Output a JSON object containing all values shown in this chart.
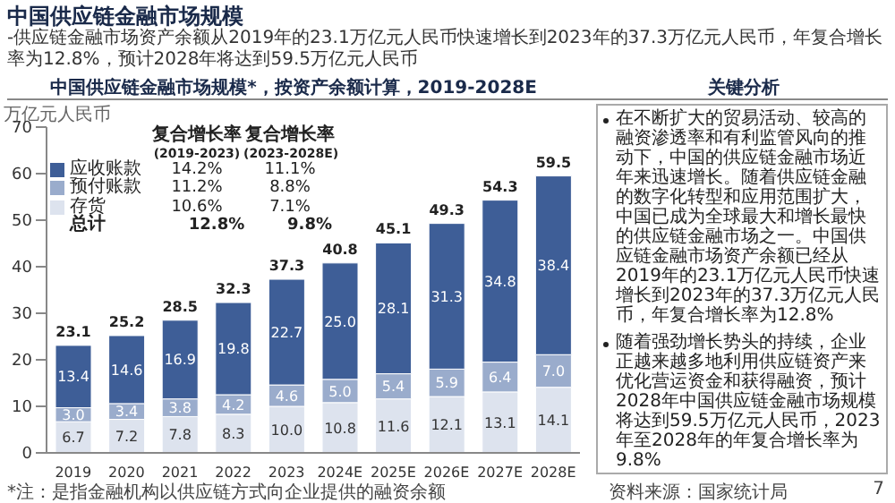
{
  "chart_data": {
    "type": "bar",
    "title": "中国供应链金融市场规模",
    "subtitle": "-供应链金融市场资产余额从2019年的23.1万亿元人民币快速增长到2023年的37.3万亿元人民币，年复合增长率为12.8%，预计2028年将达到59.5万亿元人民币",
    "ylabel": "万亿元人民币",
    "categories": [
      "2019",
      "2020",
      "2021",
      "2022",
      "2023",
      "2024E",
      "2025E",
      "2026E",
      "2027E",
      "2028E"
    ],
    "series": [
      {
        "name": "存货",
        "color": "#dde3ee",
        "values": [
          6.7,
          7.2,
          7.8,
          8.3,
          10.0,
          10.8,
          11.6,
          12.1,
          13.1,
          14.1
        ],
        "value_labels": [
          "6.7",
          "7.2",
          "7.8",
          "8.3",
          "10.0",
          "10.8",
          "11.6",
          "12.1",
          "13.1",
          "14.1"
        ]
      },
      {
        "name": "预付账款",
        "color": "#9aaccc",
        "values": [
          3.0,
          3.4,
          3.8,
          4.2,
          4.6,
          5.0,
          5.4,
          5.9,
          6.4,
          7.0
        ],
        "value_labels": [
          "3.0",
          "3.4",
          "3.8",
          "4.2",
          "4.6",
          "5.0",
          "5.4",
          "5.9",
          "6.4",
          "7.0"
        ]
      },
      {
        "name": "应收账款",
        "color": "#3e5e97",
        "values": [
          13.4,
          14.6,
          16.9,
          19.8,
          22.7,
          25.0,
          28.1,
          31.3,
          34.8,
          38.4
        ],
        "value_labels": [
          "13.4",
          "14.6",
          "16.9",
          "19.8",
          "22.7",
          "25.0",
          "28.1",
          "31.3",
          "34.8",
          "38.4"
        ]
      }
    ],
    "stacked": true,
    "totals": [
      "23.1",
      "25.2",
      "28.5",
      "32.3",
      "37.3",
      "40.8",
      "45.1",
      "49.3",
      "54.3",
      "59.5"
    ],
    "ylim": [
      0,
      70
    ],
    "yticks": [
      0,
      10,
      20,
      30,
      40,
      50,
      60,
      70
    ],
    "grid": false,
    "legend": "top left",
    "annotations": [
      "中国供应链金融市场规模*，按资产余额计算，2019-2028E",
      "复合增长率",
      "(2019-2023)",
      "复合增长率",
      "(2023-2028E)",
      "14.2%",
      "11.1%",
      "11.2%",
      "8.8%",
      "10.6%",
      "7.1%",
      "总计",
      "12.8%",
      "9.8%",
      "关键分析",
      "在不断扩大的贸易活动、较高的融资渗透率和有利监管风向的推动下，中国的供应链金融市场近年来迅速增长。随着供应链金融的数字化转型和应用范围扩大，中国已成为全球最大和增长最快的供应链金融市场之一。中国供应链金融市场资产余额已经从2019年的23.1万亿元人民币快速增长到2023年的37.3万亿元人民币，年复合增长率为12.8%",
      "随着强劲增长势头的持续，企业正越来越多地利用供应链资产来优化营运资金和获得融资，预计2028年中国供应链金融市场规模将达到59.5万亿元人民币，2023年至2028年的年复合增长率为9.8%",
      "*注：是指金融机构以供应链方式向企业提供的融资余额",
      "资料来源：国家统计局",
      "7"
    ]
  }
}
